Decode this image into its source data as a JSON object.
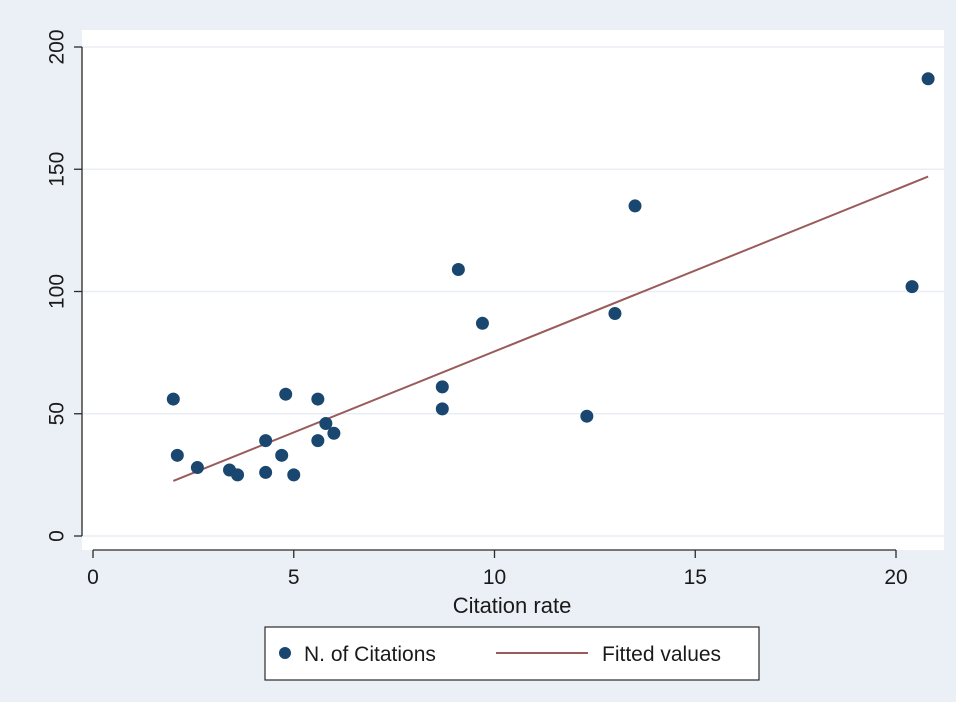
{
  "colors": {
    "outer_background": "#eaf0f5",
    "plot_background": "#ffffff",
    "gridline": "#e8eef3",
    "axis": "#2a2a2a",
    "marker": "#1a476f",
    "fit_line": "#9a5b5b"
  },
  "chart_data": {
    "type": "scatter",
    "title": "",
    "xlabel": "Citation rate",
    "ylabel": "",
    "xlim": [
      0,
      21
    ],
    "ylim": [
      0,
      200
    ],
    "xticks": [
      0,
      5,
      10,
      15,
      20
    ],
    "yticks": [
      0,
      50,
      100,
      150,
      200
    ],
    "grid": "horizontal",
    "legend_position": "bottom",
    "series": [
      {
        "name": "N. of Citations",
        "kind": "scatter",
        "x": [
          2.0,
          2.1,
          2.6,
          3.4,
          3.6,
          4.3,
          4.3,
          4.7,
          4.8,
          5.0,
          5.6,
          5.6,
          5.8,
          6.0,
          8.7,
          8.7,
          9.1,
          9.7,
          12.3,
          13.0,
          13.5,
          20.4,
          20.8
        ],
        "y": [
          56,
          33,
          28,
          27,
          25,
          39,
          26,
          33,
          58,
          25,
          56,
          39,
          46,
          42,
          61,
          52,
          109,
          87,
          49,
          91,
          135,
          102,
          187
        ]
      },
      {
        "name": "Fitted values",
        "kind": "line",
        "x": [
          2.0,
          20.8
        ],
        "y": [
          22.5,
          147
        ]
      }
    ]
  }
}
